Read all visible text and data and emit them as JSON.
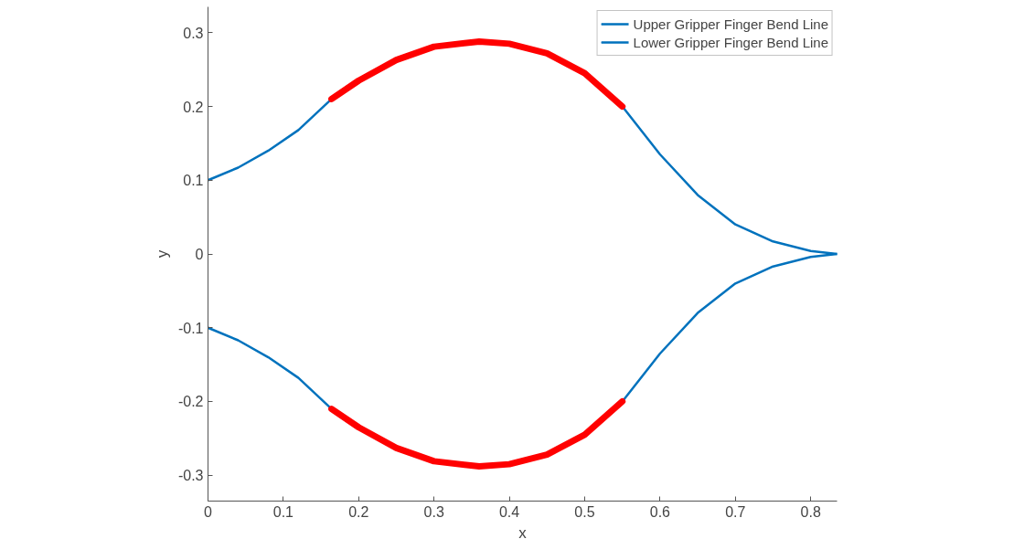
{
  "chart_data": {
    "type": "line",
    "xlabel": "x",
    "ylabel": "y",
    "x": [
      0,
      0.04,
      0.08,
      0.12,
      0.164,
      0.2,
      0.25,
      0.3,
      0.36,
      0.4,
      0.45,
      0.5,
      0.55,
      0.6,
      0.65,
      0.7,
      0.75,
      0.8,
      0.835
    ],
    "series": [
      {
        "name": "Upper Gripper Finger Bend Line",
        "color": "#0072bd",
        "values": [
          0.1,
          0.117,
          0.14,
          0.168,
          0.21,
          null,
          null,
          null,
          null,
          null,
          null,
          null,
          0.2,
          0.135,
          0.08,
          0.04,
          0.017,
          0.004,
          0
        ]
      },
      {
        "name": "Lower Gripper Finger Bend Line",
        "color": "#0072bd",
        "values": [
          -0.1,
          -0.117,
          -0.14,
          -0.168,
          -0.21,
          null,
          null,
          null,
          null,
          null,
          null,
          null,
          -0.2,
          -0.135,
          -0.08,
          -0.04,
          -0.017,
          -0.004,
          0
        ]
      },
      {
        "color": "#ff0000",
        "x": [
          0.164,
          0.2,
          0.25,
          0.3,
          0.36,
          0.4,
          0.45,
          0.5,
          0.55
        ],
        "values": [
          0.21,
          0.235,
          0.263,
          0.281,
          0.288,
          0.285,
          0.272,
          0.245,
          0.2
        ]
      },
      {
        "color": "#ff0000",
        "x": [
          0.164,
          0.2,
          0.25,
          0.3,
          0.36,
          0.4,
          0.45,
          0.5,
          0.55
        ],
        "values": [
          -0.21,
          -0.235,
          -0.263,
          -0.281,
          -0.288,
          -0.285,
          -0.272,
          -0.245,
          -0.2
        ]
      }
    ],
    "xlim": [
      0,
      0.835
    ],
    "ylim": [
      -0.335,
      0.335
    ],
    "xticks": [
      0,
      0.1,
      0.2,
      0.3,
      0.4,
      0.5,
      0.6,
      0.7,
      0.8
    ],
    "yticks": [
      -0.3,
      -0.2,
      -0.1,
      0,
      0.1,
      0.2,
      0.3
    ],
    "grid": false,
    "legend": "top right",
    "line_style": "solid"
  }
}
